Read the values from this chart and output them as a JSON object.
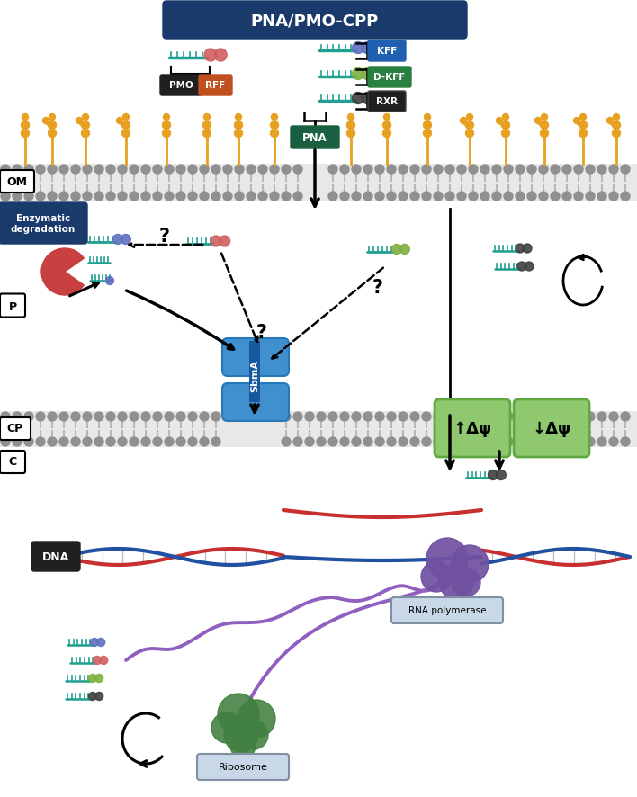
{
  "title": "PNA/PMO-CPP",
  "title_bg": "#1a3a6b",
  "title_fg": "#ffffff",
  "bg_color": "#ffffff",
  "labels": {
    "OM": "OM",
    "P": "P",
    "CP": "CP",
    "C": "C",
    "DNA": "DNA",
    "SbmA": "SbmA",
    "Ribosome": "Ribosome",
    "RNA_pol": "RNA polymerase",
    "Enzymatic": "Enzymatic\ndegradation",
    "KFF": "KFF",
    "DKFF": "D-KFF",
    "RXR": "RXR",
    "PNA": "PNA"
  },
  "colors": {
    "lps_color": "#e8a020",
    "KFF_bg": "#2060b0",
    "DKFF_bg": "#2a8040",
    "RXR_bg": "#202020",
    "PNA_bg": "#1a6040",
    "PMO_bg": "#202020",
    "RFF_bg": "#c05020",
    "DNA_bg": "#202020",
    "SbmA_color": "#4090d0",
    "enzymatic_bg": "#1a3a6b",
    "ribosome_label_bg": "#c8d8e8",
    "RNA_pol_label_bg": "#c8d8e8",
    "peptide_pink": "#d06060",
    "peptide_blue": "#6070c0",
    "peptide_green": "#80b040",
    "peptide_black": "#404040",
    "pna_teal": "#20a080",
    "dna_red": "#c83030",
    "dna_blue": "#2050a0",
    "rna_purple": "#9060c0",
    "ribosome_green": "#408040",
    "rna_pol_purple": "#7050a0",
    "delta_psi_bg": "#90c870"
  }
}
